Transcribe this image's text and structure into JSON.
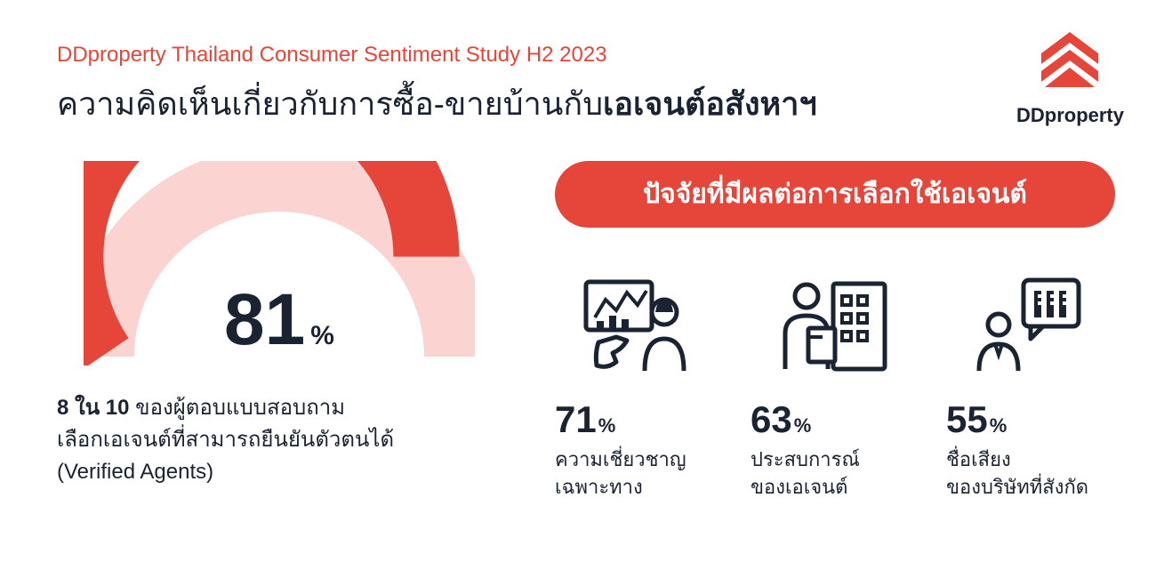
{
  "header": {
    "subtitle": "DDproperty Thailand Consumer Sentiment Study H2 2023",
    "title_prefix": "ความคิดเห็นเกี่ยวกับการซื้อ-ขายบ้านกับ",
    "title_bold": "เอเจนต์อสังหาฯ",
    "logo_text": "DDproperty"
  },
  "gauge": {
    "type": "semi-donut",
    "value": 81,
    "value_display": "81",
    "percent_symbol": "%",
    "fill_color": "#e64539",
    "track_color": "#fbd4d1",
    "text_color": "#1a2332",
    "start_angle": 180,
    "end_angle": 0,
    "stroke_width": 74,
    "outer_radius": 200
  },
  "description": {
    "line1_bold": "8 ใน 10",
    "line1_rest": " ของผู้ตอบแบบสอบถาม",
    "line2": "เลือกเอเจนต์ที่สามารถยืนยันตัวตนได้",
    "line3": "(Verified Agents)"
  },
  "banner": {
    "text": "ปัจจัยที่มีผลต่อการเลือกใช้เอเจนต์",
    "background_color": "#e64539",
    "text_color": "#ffffff"
  },
  "factors": [
    {
      "value": "71",
      "percent": "%",
      "label_line1": "ความเชี่ยวชาญ",
      "label_line2": "เฉพาะทาง"
    },
    {
      "value": "63",
      "percent": "%",
      "label_line1": "ประสบการณ์",
      "label_line2": "ของเอเจนต์"
    },
    {
      "value": "55",
      "percent": "%",
      "label_line1": "ชื่อเสียง",
      "label_line2": "ของบริษัทที่สังกัด"
    }
  ],
  "colors": {
    "brand_red": "#e64539",
    "dark_navy": "#1a2332",
    "light_red": "#fbd4d1",
    "white": "#ffffff"
  }
}
